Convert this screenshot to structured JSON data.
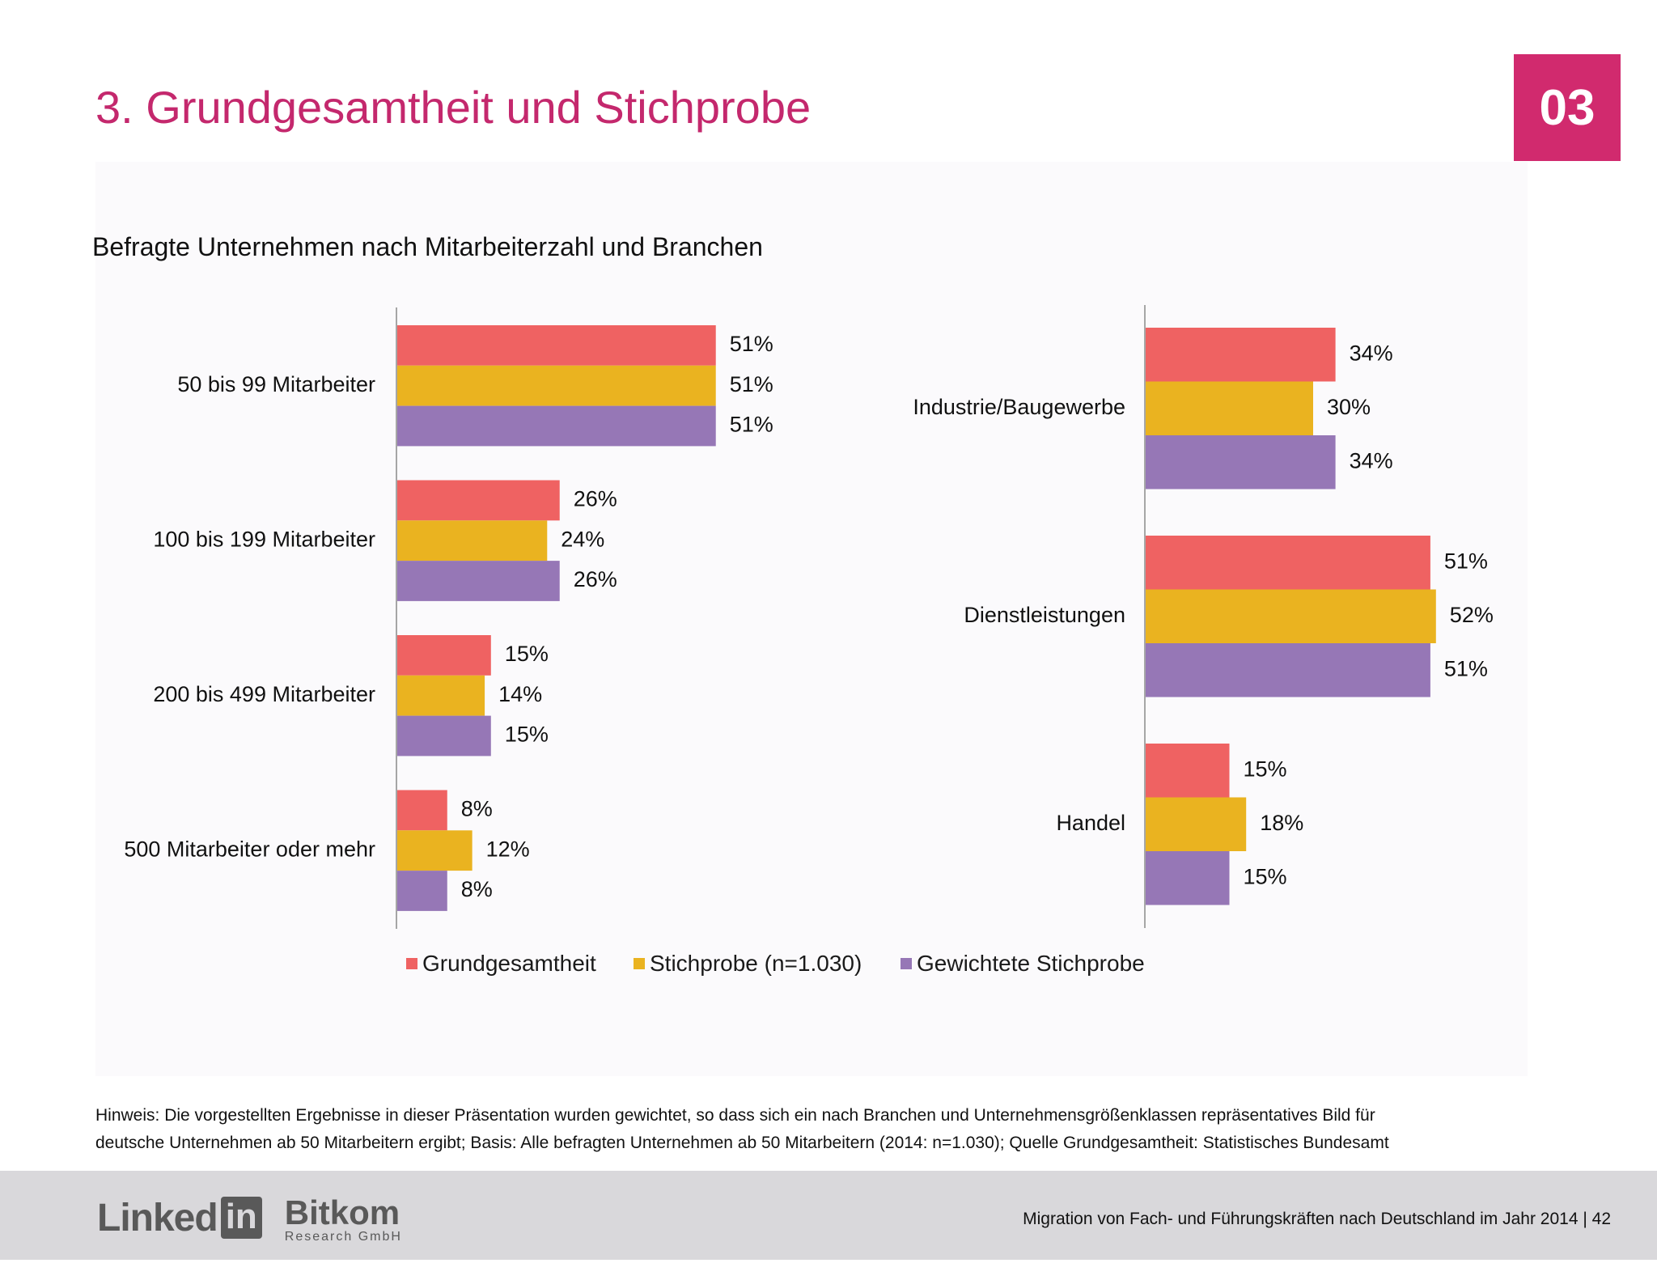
{
  "header": {
    "title": "3. Grundgesamtheit und Stichprobe",
    "section_badge": "03"
  },
  "subtitle": "Befragte Unternehmen nach Mitarbeiterzahl und Branchen",
  "colors": {
    "series_1": "#ef6262",
    "series_2": "#eab320",
    "series_3": "#9677b6",
    "title": "#c4286d",
    "badge": "#d12a6e"
  },
  "chart_data": [
    {
      "type": "bar",
      "orientation": "horizontal",
      "categories": [
        "50 bis 99 Mitarbeiter",
        "100 bis 199 Mitarbeiter",
        "200 bis 499 Mitarbeiter",
        "500 Mitarbeiter oder mehr"
      ],
      "series": [
        {
          "name": "Grundgesamtheit",
          "values": [
            51,
            26,
            15,
            8
          ]
        },
        {
          "name": "Stichprobe (n=1.030)",
          "values": [
            51,
            24,
            14,
            12
          ]
        },
        {
          "name": "Gewichtete Stichprobe",
          "values": [
            51,
            26,
            15,
            8
          ]
        }
      ],
      "value_suffix": "%",
      "grid": false
    },
    {
      "type": "bar",
      "orientation": "horizontal",
      "categories": [
        "Industrie/Baugewerbe",
        "Dienstleistungen",
        "Handel"
      ],
      "series": [
        {
          "name": "Grundgesamtheit",
          "values": [
            34,
            51,
            15
          ]
        },
        {
          "name": "Stichprobe (n=1.030)",
          "values": [
            30,
            52,
            18
          ]
        },
        {
          "name": "Gewichtete Stichprobe",
          "values": [
            34,
            51,
            15
          ]
        }
      ],
      "value_suffix": "%",
      "grid": false
    }
  ],
  "legend": {
    "position": "bottom",
    "items": [
      "Grundgesamtheit",
      "Stichprobe (n=1.030)",
      "Gewichtete Stichprobe"
    ]
  },
  "note": {
    "line1": "Hinweis: Die vorgestellten Ergebnisse in dieser Präsentation wurden gewichtet, so dass sich ein nach Branchen und Unternehmensgrößenklassen repräsentatives Bild für",
    "line2": "deutsche Unternehmen ab 50 Mitarbeitern ergibt; Basis: Alle befragten Unternehmen ab 50 Mitarbeitern (2014: n=1.030); Quelle Grundgesamtheit: Statistisches Bundesamt"
  },
  "footer": {
    "logo_linked": "Linked",
    "logo_in": "in",
    "logo_bitkom": "Bitkom",
    "logo_bitkom_sub": "Research GmbH",
    "text": "Migration von Fach- und Führungskräften nach Deutschland im Jahr 2014  |  42"
  }
}
